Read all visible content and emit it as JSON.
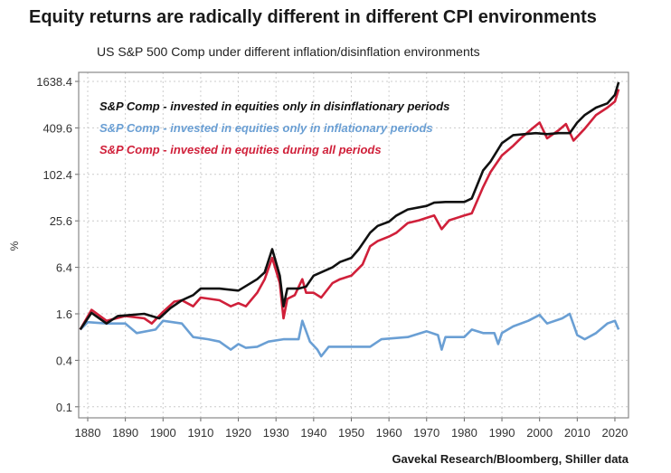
{
  "chart_data": {
    "type": "line",
    "title": "Equity returns are radically different in different CPI environments",
    "subtitle": "US S&P 500 Comp under different inflation/disinflation environments",
    "ylabel": "%",
    "xlabel": "",
    "source": "Gavekal Research/Bloomberg, Shiller data",
    "y_scale": "log",
    "ylim": [
      0.1,
      1638.4
    ],
    "xlim": [
      1877,
      2023
    ],
    "y_ticks": [
      "1638.4",
      "409.6",
      "102.4",
      "25.6",
      "6.4",
      "1.6",
      "0.4",
      "0.1"
    ],
    "x_ticks": [
      "1880",
      "1890",
      "1900",
      "1910",
      "1920",
      "1930",
      "1940",
      "1950",
      "1960",
      "1970",
      "1980",
      "1990",
      "2000",
      "2010",
      "2020"
    ],
    "grid": true,
    "legend_position": "top-left",
    "series": [
      {
        "name": "S&P Comp - invested in equities only in disinflationary periods",
        "color": "#111111",
        "points": [
          [
            1878,
            1.0
          ],
          [
            1881,
            1.65
          ],
          [
            1885,
            1.2
          ],
          [
            1888,
            1.5
          ],
          [
            1895,
            1.6
          ],
          [
            1899,
            1.4
          ],
          [
            1902,
            1.9
          ],
          [
            1905,
            2.4
          ],
          [
            1908,
            2.8
          ],
          [
            1910,
            3.4
          ],
          [
            1915,
            3.4
          ],
          [
            1920,
            3.2
          ],
          [
            1925,
            4.5
          ],
          [
            1927,
            5.5
          ],
          [
            1929,
            11
          ],
          [
            1931,
            5
          ],
          [
            1932,
            2.0
          ],
          [
            1933,
            3.4
          ],
          [
            1936,
            3.4
          ],
          [
            1938,
            3.6
          ],
          [
            1940,
            5
          ],
          [
            1945,
            6.4
          ],
          [
            1947,
            7.5
          ],
          [
            1950,
            8.5
          ],
          [
            1952,
            11
          ],
          [
            1955,
            18
          ],
          [
            1957,
            22
          ],
          [
            1960,
            25
          ],
          [
            1962,
            30
          ],
          [
            1965,
            36
          ],
          [
            1970,
            40
          ],
          [
            1972,
            44
          ],
          [
            1975,
            45
          ],
          [
            1980,
            45
          ],
          [
            1982,
            50
          ],
          [
            1985,
            115
          ],
          [
            1987,
            150
          ],
          [
            1990,
            260
          ],
          [
            1993,
            330
          ],
          [
            1996,
            340
          ],
          [
            1999,
            350
          ],
          [
            2002,
            340
          ],
          [
            2005,
            350
          ],
          [
            2008,
            350
          ],
          [
            2010,
            480
          ],
          [
            2012,
            600
          ],
          [
            2015,
            750
          ],
          [
            2018,
            850
          ],
          [
            2020,
            1100
          ],
          [
            2021,
            1600
          ]
        ]
      },
      {
        "name": "S&P Comp - invested in equities only in inflationary periods",
        "color": "#6a9fd4",
        "points": [
          [
            1878,
            1.0
          ],
          [
            1880,
            1.25
          ],
          [
            1885,
            1.2
          ],
          [
            1890,
            1.2
          ],
          [
            1893,
            0.9
          ],
          [
            1898,
            1.0
          ],
          [
            1900,
            1.3
          ],
          [
            1905,
            1.2
          ],
          [
            1908,
            0.8
          ],
          [
            1912,
            0.75
          ],
          [
            1915,
            0.7
          ],
          [
            1918,
            0.55
          ],
          [
            1920,
            0.65
          ],
          [
            1922,
            0.58
          ],
          [
            1925,
            0.6
          ],
          [
            1928,
            0.7
          ],
          [
            1932,
            0.75
          ],
          [
            1936,
            0.75
          ],
          [
            1937,
            1.3
          ],
          [
            1939,
            0.7
          ],
          [
            1941,
            0.55
          ],
          [
            1942,
            0.45
          ],
          [
            1944,
            0.6
          ],
          [
            1950,
            0.6
          ],
          [
            1955,
            0.6
          ],
          [
            1958,
            0.75
          ],
          [
            1965,
            0.8
          ],
          [
            1970,
            0.95
          ],
          [
            1973,
            0.85
          ],
          [
            1974,
            0.55
          ],
          [
            1975,
            0.8
          ],
          [
            1980,
            0.8
          ],
          [
            1982,
            1.0
          ],
          [
            1985,
            0.9
          ],
          [
            1988,
            0.9
          ],
          [
            1989,
            0.65
          ],
          [
            1990,
            0.9
          ],
          [
            1993,
            1.1
          ],
          [
            1997,
            1.3
          ],
          [
            2000,
            1.55
          ],
          [
            2002,
            1.2
          ],
          [
            2006,
            1.4
          ],
          [
            2008,
            1.6
          ],
          [
            2010,
            0.85
          ],
          [
            2012,
            0.75
          ],
          [
            2015,
            0.9
          ],
          [
            2018,
            1.2
          ],
          [
            2020,
            1.3
          ],
          [
            2021,
            1.0
          ]
        ]
      },
      {
        "name": "S&P Comp - invested in equities during all periods",
        "color": "#d0203a",
        "points": [
          [
            1878,
            1.0
          ],
          [
            1881,
            1.8
          ],
          [
            1885,
            1.3
          ],
          [
            1890,
            1.5
          ],
          [
            1895,
            1.4
          ],
          [
            1897,
            1.2
          ],
          [
            1900,
            1.7
          ],
          [
            1903,
            2.3
          ],
          [
            1905,
            2.4
          ],
          [
            1908,
            2.0
          ],
          [
            1910,
            2.6
          ],
          [
            1915,
            2.4
          ],
          [
            1918,
            2.0
          ],
          [
            1920,
            2.2
          ],
          [
            1922,
            2.0
          ],
          [
            1925,
            3.0
          ],
          [
            1927,
            4.5
          ],
          [
            1929,
            8.5
          ],
          [
            1931,
            4
          ],
          [
            1932,
            1.4
          ],
          [
            1933,
            2.5
          ],
          [
            1935,
            2.8
          ],
          [
            1937,
            4.5
          ],
          [
            1938,
            3.0
          ],
          [
            1940,
            3.0
          ],
          [
            1942,
            2.6
          ],
          [
            1945,
            4
          ],
          [
            1947,
            4.5
          ],
          [
            1950,
            5
          ],
          [
            1953,
            7
          ],
          [
            1955,
            12
          ],
          [
            1957,
            14
          ],
          [
            1960,
            16
          ],
          [
            1962,
            18
          ],
          [
            1965,
            24
          ],
          [
            1968,
            26
          ],
          [
            1970,
            28
          ],
          [
            1972,
            30
          ],
          [
            1974,
            20
          ],
          [
            1976,
            26
          ],
          [
            1980,
            30
          ],
          [
            1982,
            32
          ],
          [
            1985,
            70
          ],
          [
            1987,
            110
          ],
          [
            1990,
            180
          ],
          [
            1993,
            240
          ],
          [
            1995,
            300
          ],
          [
            1998,
            400
          ],
          [
            2000,
            480
          ],
          [
            2002,
            300
          ],
          [
            2005,
            380
          ],
          [
            2007,
            460
          ],
          [
            2009,
            280
          ],
          [
            2012,
            400
          ],
          [
            2015,
            600
          ],
          [
            2018,
            750
          ],
          [
            2020,
            900
          ],
          [
            2021,
            1300
          ]
        ]
      }
    ]
  }
}
